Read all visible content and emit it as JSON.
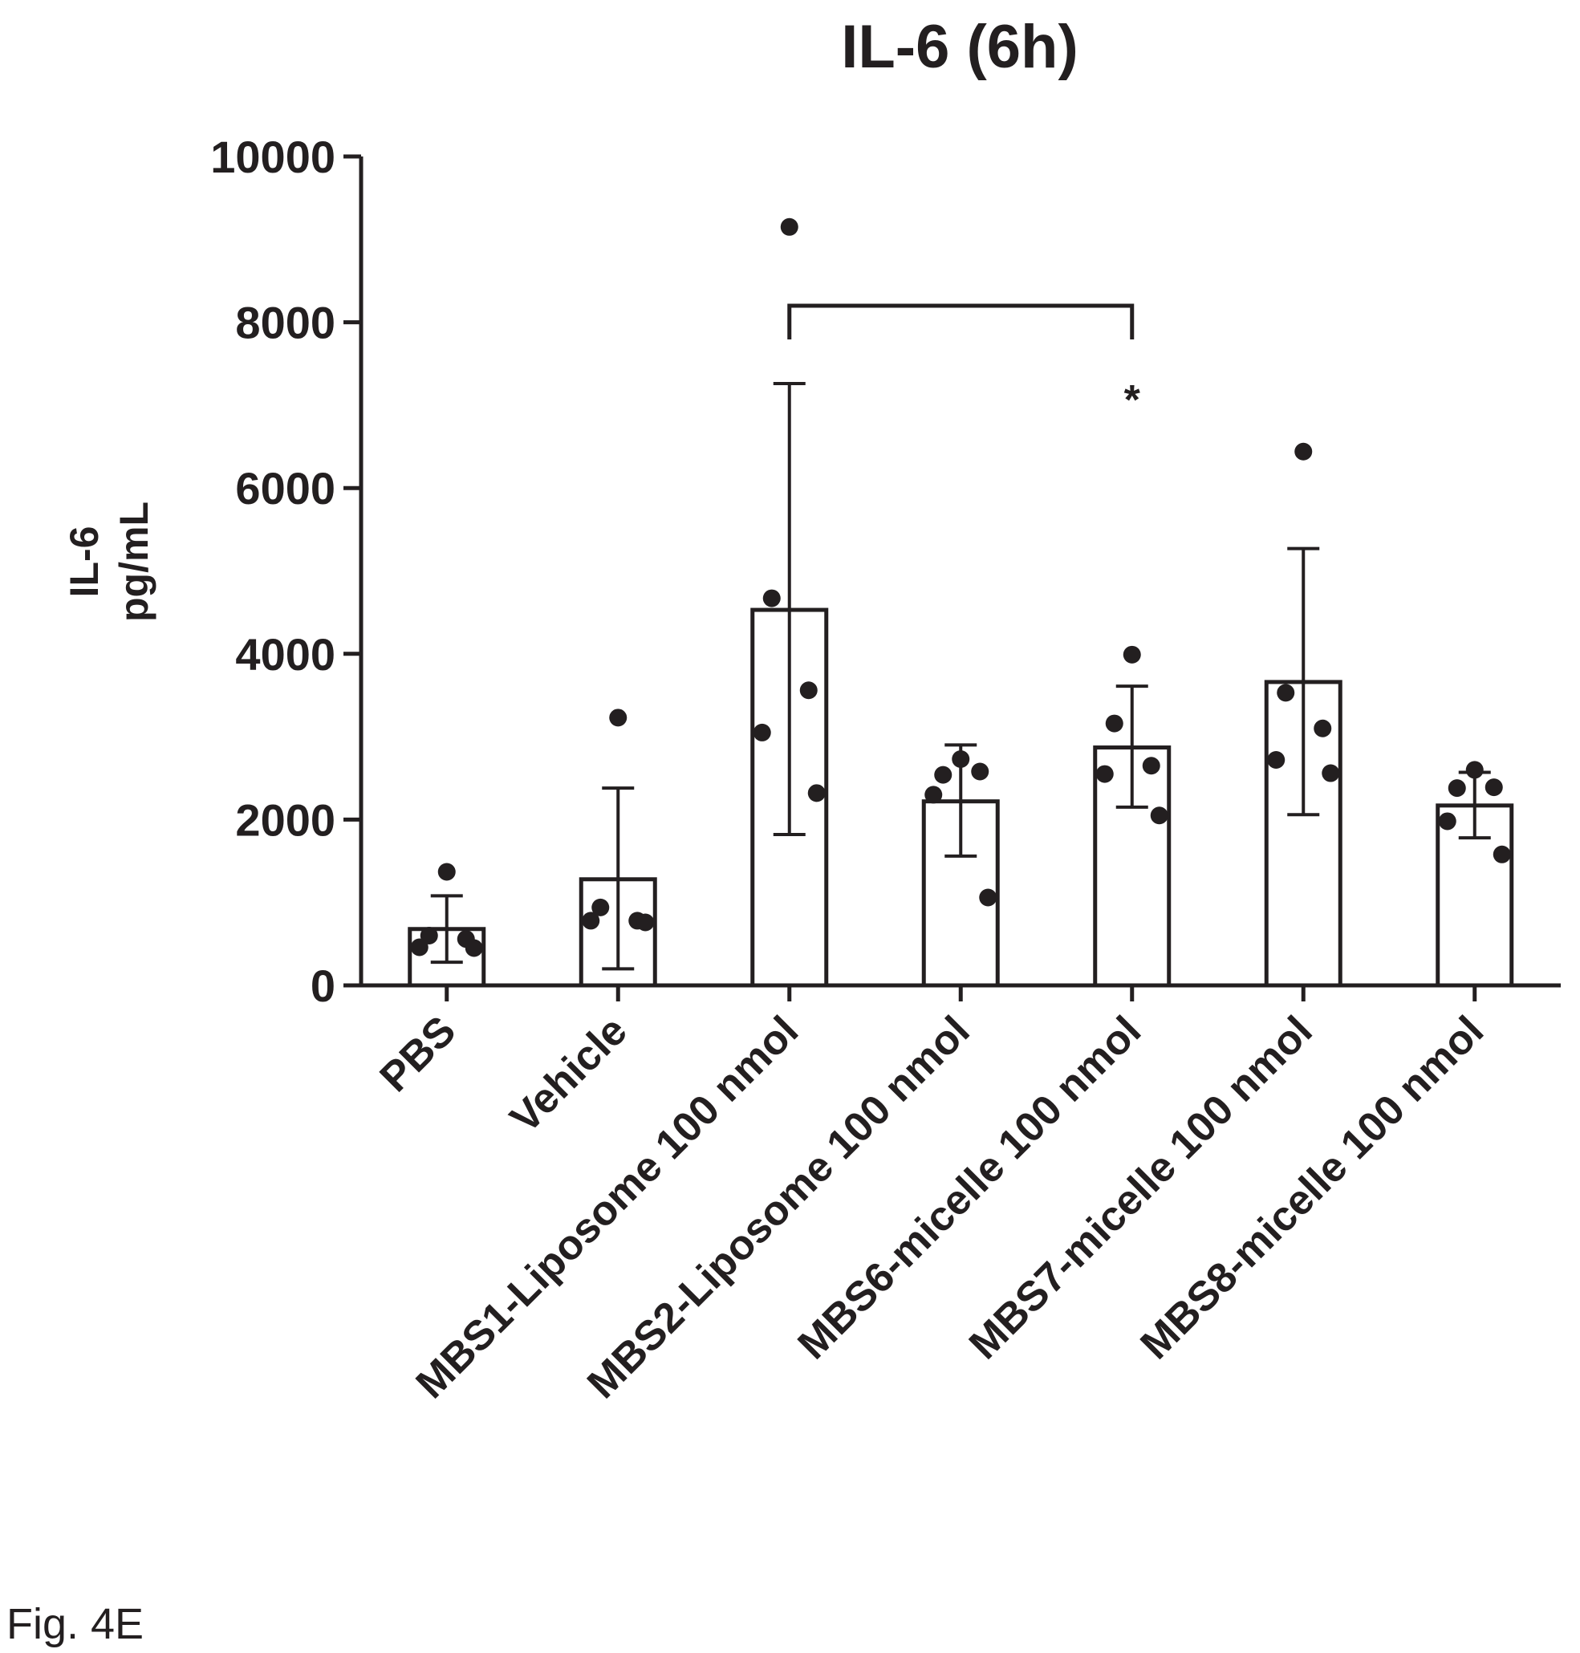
{
  "figure_label": "Fig. 4E",
  "chart_data": {
    "type": "bar",
    "title": "IL-6 (6h)",
    "ylabel_lines": [
      "IL-6",
      "pg/mL"
    ],
    "xlabel": "",
    "ylim": [
      0,
      10000
    ],
    "yticks": [
      0,
      2000,
      4000,
      6000,
      8000,
      10000
    ],
    "ytick_labels": [
      "0",
      "2000",
      "4000",
      "6000",
      "8000",
      "10000"
    ],
    "grid": false,
    "categories": [
      "PBS",
      "Vehicle",
      "MBS1-Liposome 100 nmol",
      "MBS2-Liposome 100 nmol",
      "MBS6-micelle 100 nmol",
      "MBS7-micelle 100 nmol",
      "MBS8-micelle 100 nmol"
    ],
    "values": [
      680,
      1280,
      4530,
      2220,
      2870,
      3660,
      2170
    ],
    "error_low": [
      280,
      200,
      1820,
      1560,
      2150,
      2060,
      1780
    ],
    "error_high": [
      1080,
      2380,
      7260,
      2900,
      3610,
      5270,
      2570
    ],
    "points": [
      [
        1370,
        600,
        560,
        460,
        450
      ],
      [
        3230,
        940,
        780,
        780,
        760
      ],
      [
        9150,
        4670,
        3560,
        3050,
        2320
      ],
      [
        2730,
        2540,
        2580,
        2300,
        1060
      ],
      [
        3990,
        3160,
        2650,
        2550,
        2050
      ],
      [
        6440,
        3530,
        3100,
        2720,
        2560
      ],
      [
        2600,
        2380,
        2390,
        1980,
        1580
      ]
    ],
    "significance": [
      {
        "from": 2,
        "to": 4,
        "y": 8200,
        "label": "*"
      }
    ]
  },
  "colors": {
    "ink": "#231f20",
    "bar_fill": "#ffffff"
  }
}
